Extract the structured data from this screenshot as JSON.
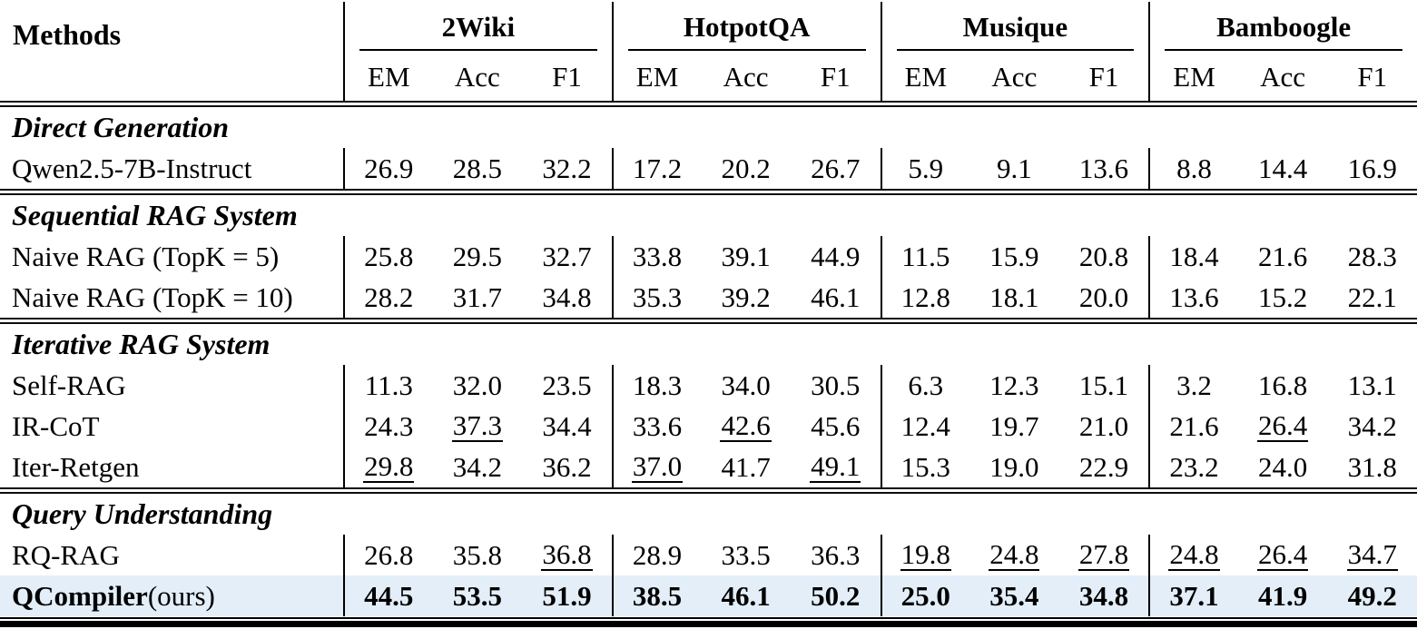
{
  "colors": {
    "highlight": "#e3eef9",
    "rule": "#000000",
    "text": "#000000"
  },
  "table": {
    "methods_label": "Methods",
    "groups": [
      {
        "name": "2Wiki"
      },
      {
        "name": "HotpotQA"
      },
      {
        "name": "Musique"
      },
      {
        "name": "Bamboogle"
      }
    ],
    "subcols": [
      "EM",
      "Acc",
      "F1"
    ],
    "sections": [
      {
        "title": "Direct Generation",
        "rows": [
          {
            "method": "Qwen2.5-7B-Instruct",
            "cells": [
              "26.9",
              "28.5",
              "32.2",
              "17.2",
              "20.2",
              "26.7",
              "5.9",
              "9.1",
              "13.6",
              "8.8",
              "14.4",
              "16.9"
            ]
          }
        ]
      },
      {
        "title": "Sequential RAG System",
        "rows": [
          {
            "method": "Naive RAG (TopK = 5)",
            "cells": [
              "25.8",
              "29.5",
              "32.7",
              "33.8",
              "39.1",
              "44.9",
              "11.5",
              "15.9",
              "20.8",
              "18.4",
              "21.6",
              "28.3"
            ]
          },
          {
            "method": "Naive RAG (TopK = 10)",
            "cells": [
              "28.2",
              "31.7",
              "34.8",
              "35.3",
              "39.2",
              "46.1",
              "12.8",
              "18.1",
              "20.0",
              "13.6",
              "15.2",
              "22.1"
            ]
          }
        ]
      },
      {
        "title": "Iterative RAG System",
        "rows": [
          {
            "method": "Self-RAG",
            "cells": [
              "11.3",
              "32.0",
              "23.5",
              "18.3",
              "34.0",
              "30.5",
              "6.3",
              "12.3",
              "15.1",
              "3.2",
              "16.8",
              "13.1"
            ]
          },
          {
            "method": "IR-CoT",
            "cells": [
              "24.3",
              "37.3",
              "34.4",
              "33.6",
              "42.6",
              "45.6",
              "12.4",
              "19.7",
              "21.0",
              "21.6",
              "26.4",
              "34.2"
            ],
            "underline": [
              1,
              4,
              10
            ]
          },
          {
            "method": "Iter-Retgen",
            "cells": [
              "29.8",
              "34.2",
              "36.2",
              "37.0",
              "41.7",
              "49.1",
              "15.3",
              "19.0",
              "22.9",
              "23.2",
              "24.0",
              "31.8"
            ],
            "underline": [
              0,
              3,
              5
            ]
          }
        ]
      },
      {
        "title": "Query Understanding",
        "rows": [
          {
            "method": "RQ-RAG",
            "cells": [
              "26.8",
              "35.8",
              "36.8",
              "28.9",
              "33.5",
              "36.3",
              "19.8",
              "24.8",
              "27.8",
              "24.8",
              "26.4",
              "34.7"
            ],
            "underline": [
              2,
              6,
              7,
              8,
              9,
              10,
              11
            ]
          },
          {
            "method": "QCompiler",
            "method_suffix": " (ours)",
            "cells": [
              "44.5",
              "53.5",
              "51.9",
              "38.5",
              "46.1",
              "50.2",
              "25.0",
              "35.4",
              "34.8",
              "37.1",
              "41.9",
              "49.2"
            ],
            "bold": true,
            "highlight": true
          }
        ]
      }
    ]
  }
}
